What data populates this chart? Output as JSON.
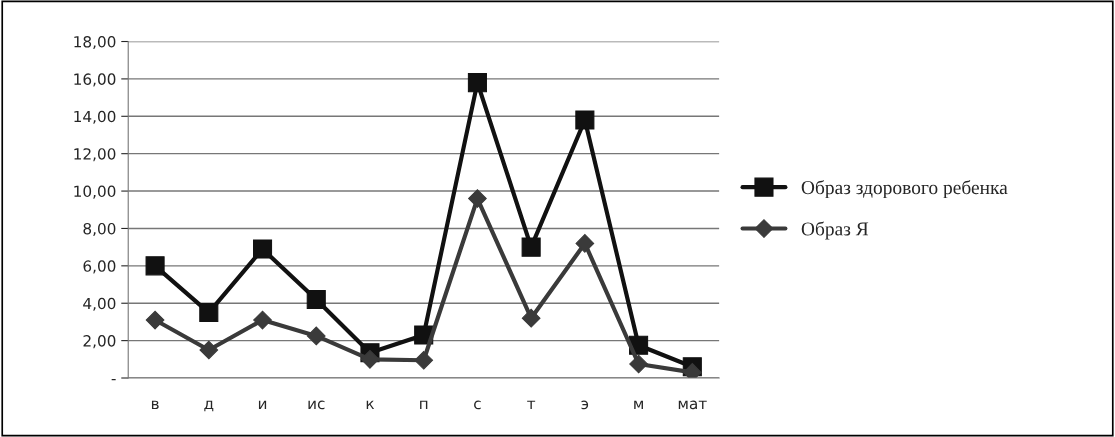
{
  "chart_data": {
    "type": "line",
    "categories": [
      "в",
      "д",
      "и",
      "ис",
      "к",
      "п",
      "с",
      "т",
      "э",
      "м",
      "мат"
    ],
    "series": [
      {
        "name": "Образ здорового ребенка",
        "color": "#111111",
        "marker": "square",
        "values": [
          6.0,
          3.5,
          6.9,
          4.2,
          1.35,
          2.3,
          15.8,
          7.0,
          13.8,
          1.75,
          0.6
        ]
      },
      {
        "name": "Образ Я",
        "color": "#3a3a3a",
        "marker": "diamond",
        "values": [
          3.1,
          1.5,
          3.1,
          2.25,
          1.0,
          0.95,
          9.6,
          3.2,
          7.2,
          0.75,
          0.3
        ]
      }
    ],
    "ylim": [
      0,
      18
    ],
    "yticks": [
      {
        "value": 0,
        "label": "-"
      },
      {
        "value": 2,
        "label": "2,00"
      },
      {
        "value": 4,
        "label": "4,00"
      },
      {
        "value": 6,
        "label": "6,00"
      },
      {
        "value": 8,
        "label": "8,00"
      },
      {
        "value": 10,
        "label": "10,00"
      },
      {
        "value": 12,
        "label": "12,00"
      },
      {
        "value": 14,
        "label": "14,00"
      },
      {
        "value": 16,
        "label": "16,00"
      },
      {
        "value": 18,
        "label": "18,00"
      }
    ],
    "grid": "y",
    "legend": "right"
  }
}
